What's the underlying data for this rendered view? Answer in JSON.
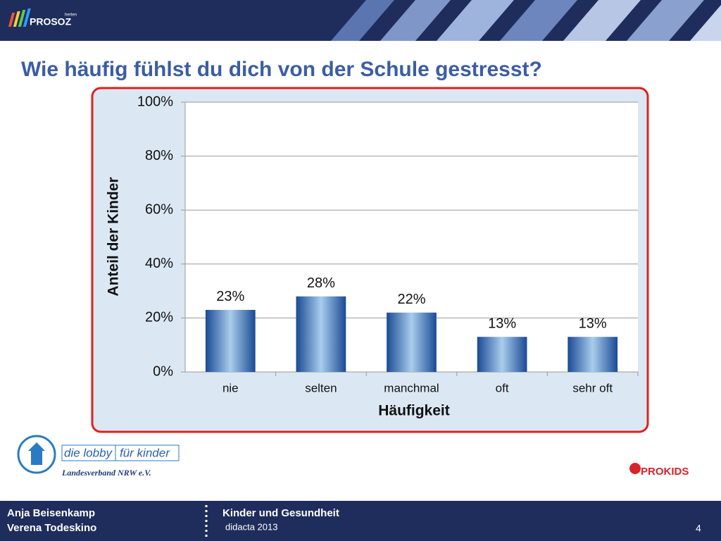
{
  "slide": {
    "logo": {
      "brand": "PROSOZ",
      "city": "herten"
    },
    "partner": {
      "name_left": "die lobby",
      "name_right": "für kinder",
      "region": "Landesverband NRW e.V."
    },
    "prokids": "PROKIDS",
    "footer": {
      "authors": [
        "Anja Beisenkamp",
        "Verena Todeskino"
      ],
      "topic": "Kinder und Gesundheit",
      "event": "didacta 2013",
      "page": "4"
    }
  },
  "chart_data": {
    "type": "bar",
    "title": "Wie häufig fühlst du dich von der Schule gestresst?",
    "x_label": "Häufigkeit",
    "y_label": "Anteil der Kinder",
    "categories": [
      "nie",
      "selten",
      "manchmal",
      "oft",
      "sehr oft"
    ],
    "values": [
      23,
      28,
      22,
      13,
      13
    ],
    "value_labels": [
      "23%",
      "28%",
      "22%",
      "13%",
      "13%"
    ],
    "color": "#1a4a94",
    "ylim": [
      0,
      100
    ],
    "yticks": [
      {
        "value": 0,
        "label": "0%"
      },
      {
        "value": 20,
        "label": "20%"
      },
      {
        "value": 40,
        "label": "40%"
      },
      {
        "value": 60,
        "label": "60%"
      },
      {
        "value": 80,
        "label": "80%"
      },
      {
        "value": 100,
        "label": "100%"
      }
    ],
    "grid": true
  }
}
